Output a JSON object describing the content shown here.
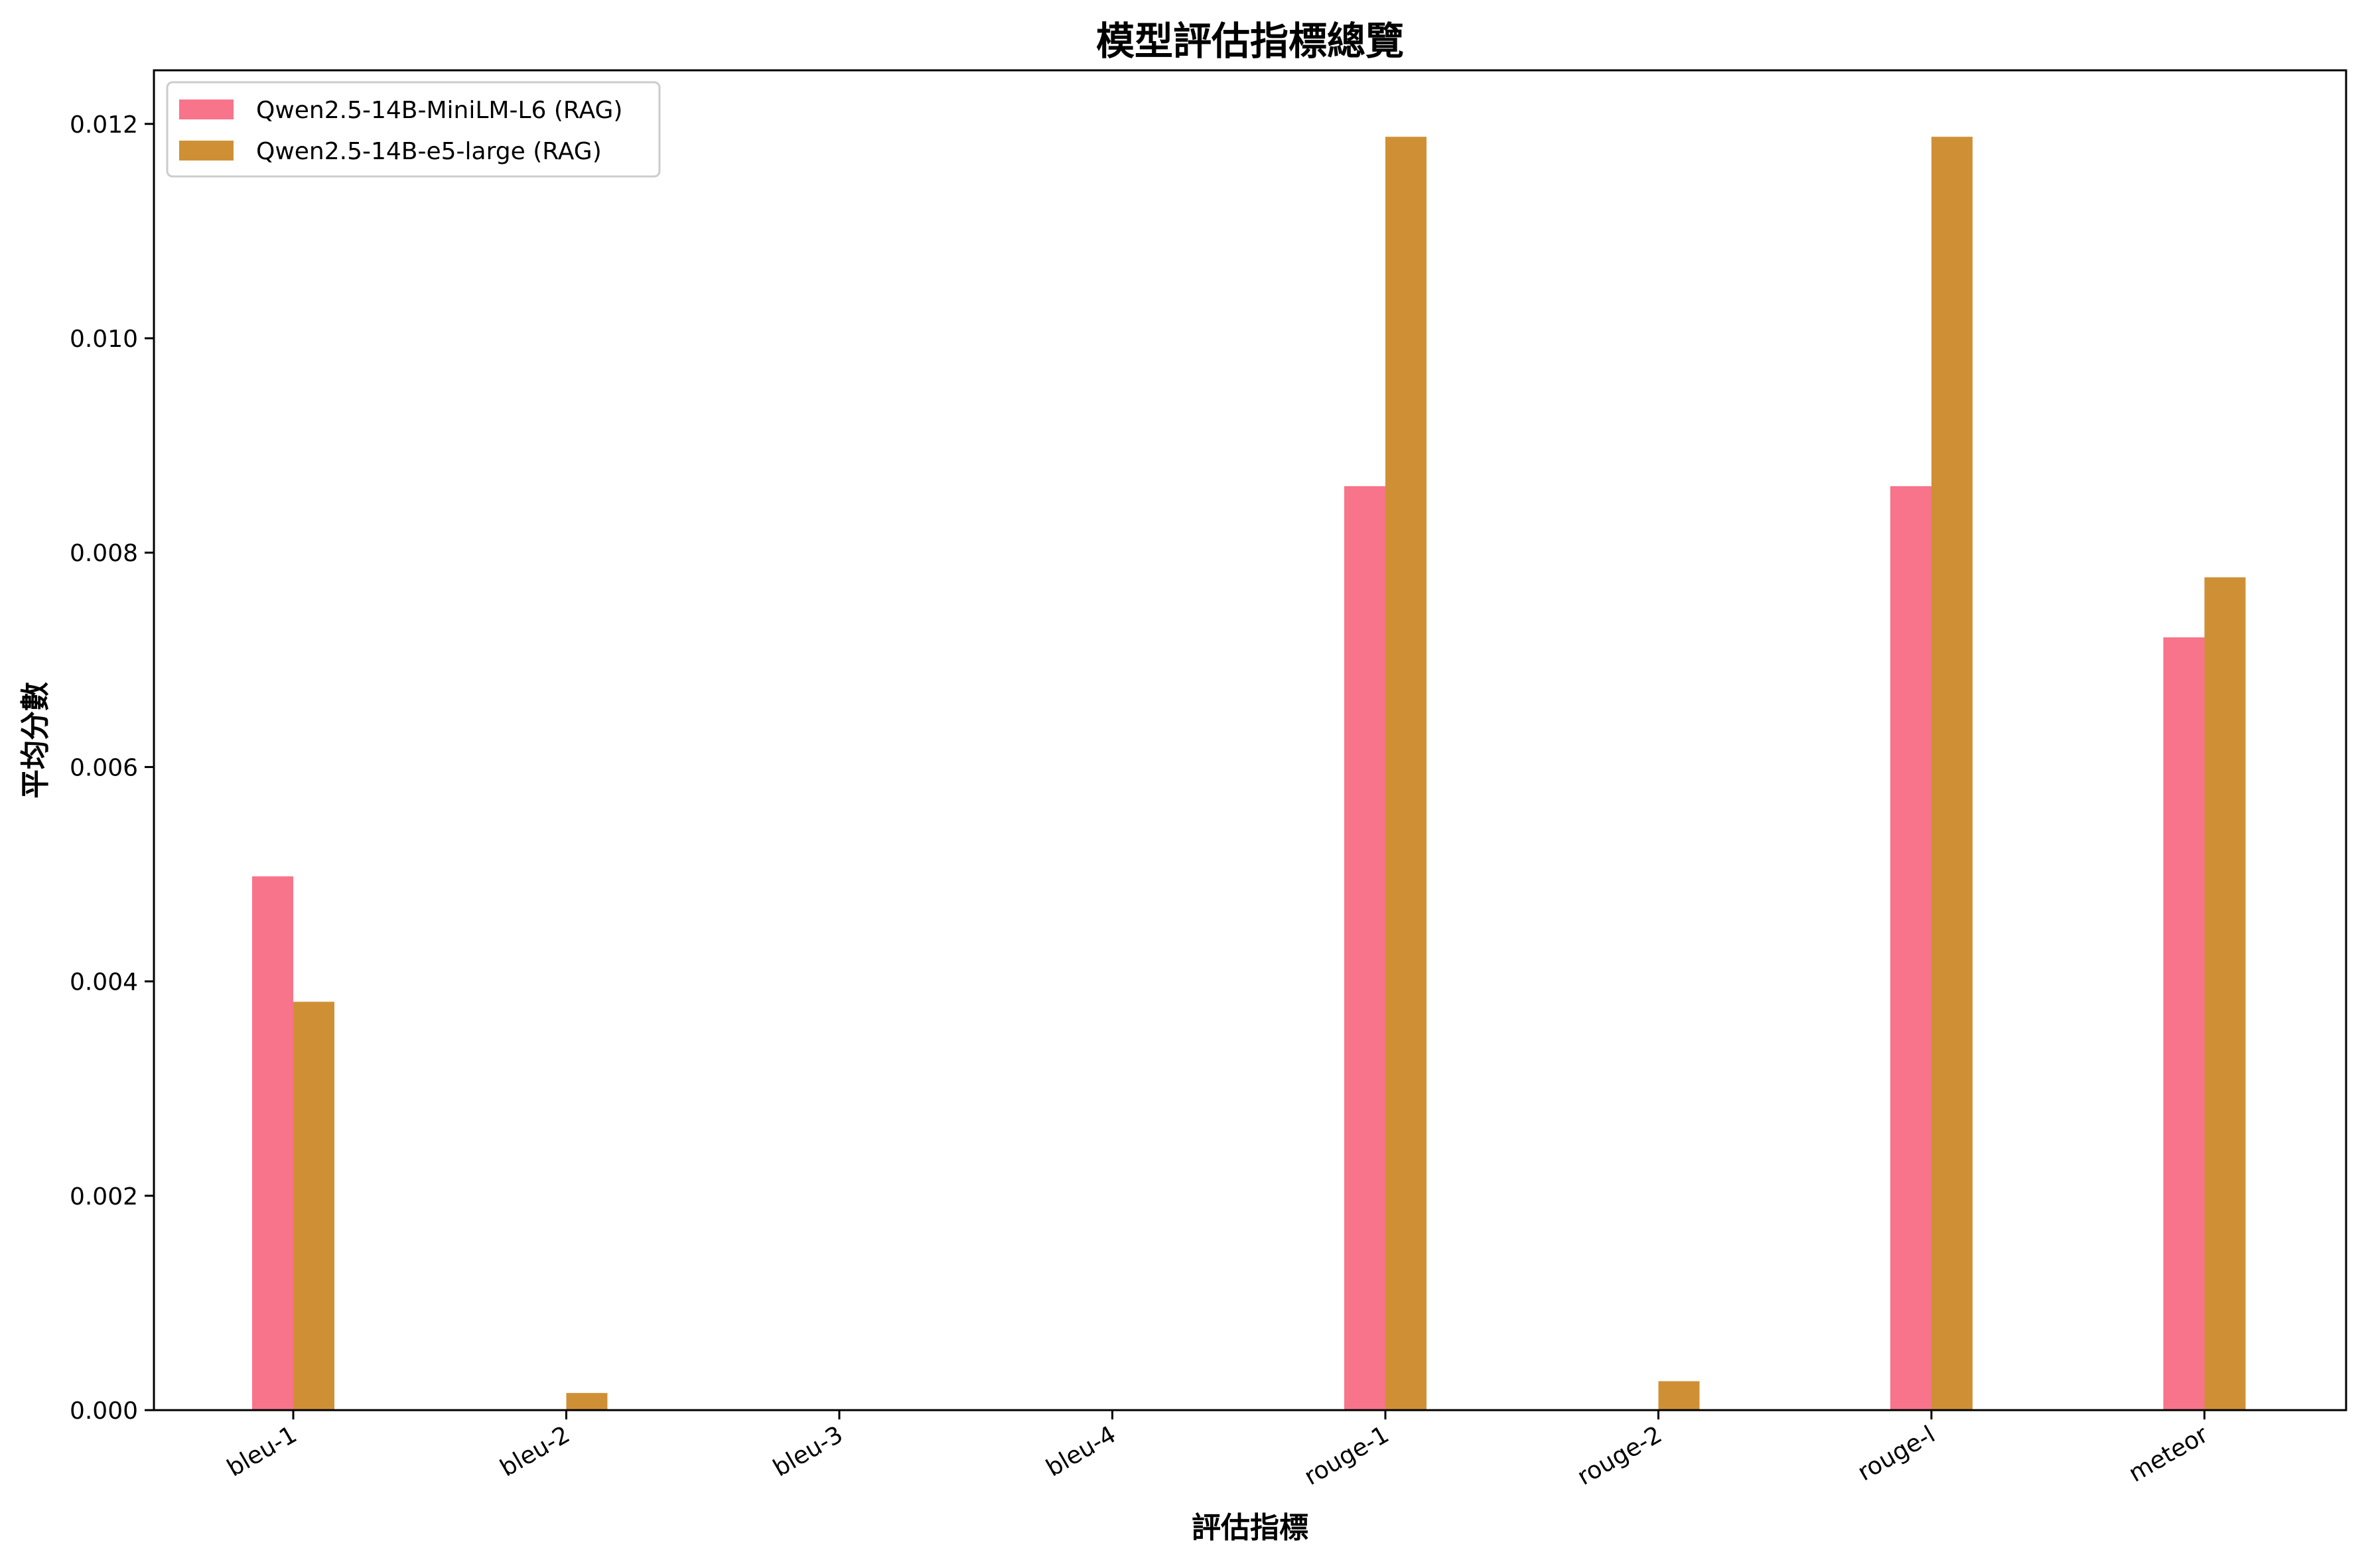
{
  "chart_data": {
    "type": "bar",
    "title": "模型評估指標總覽",
    "xlabel": "評估指標",
    "ylabel": "平均分數",
    "categories": [
      "bleu-1",
      "bleu-2",
      "bleu-3",
      "bleu-4",
      "rouge-1",
      "rouge-2",
      "rouge-l",
      "meteor"
    ],
    "series": [
      {
        "name": "Qwen2.5-14B-MiniLM-L6 (RAG)",
        "color": "#f7748b",
        "values": [
          0.00498,
          0.0,
          0.0,
          0.0,
          0.00862,
          0.0,
          0.00862,
          0.00721
        ]
      },
      {
        "name": "Qwen2.5-14B-e5-large (RAG)",
        "color": "#cf9035",
        "values": [
          0.00381,
          0.00016,
          0.0,
          0.0,
          0.01188,
          0.00027,
          0.01188,
          0.00777
        ]
      }
    ],
    "yticks": [
      "0.000",
      "0.002",
      "0.004",
      "0.006",
      "0.008",
      "0.010",
      "0.012"
    ],
    "ylim": [
      0,
      0.0125
    ],
    "grid": false,
    "legend_position": "top-left"
  }
}
